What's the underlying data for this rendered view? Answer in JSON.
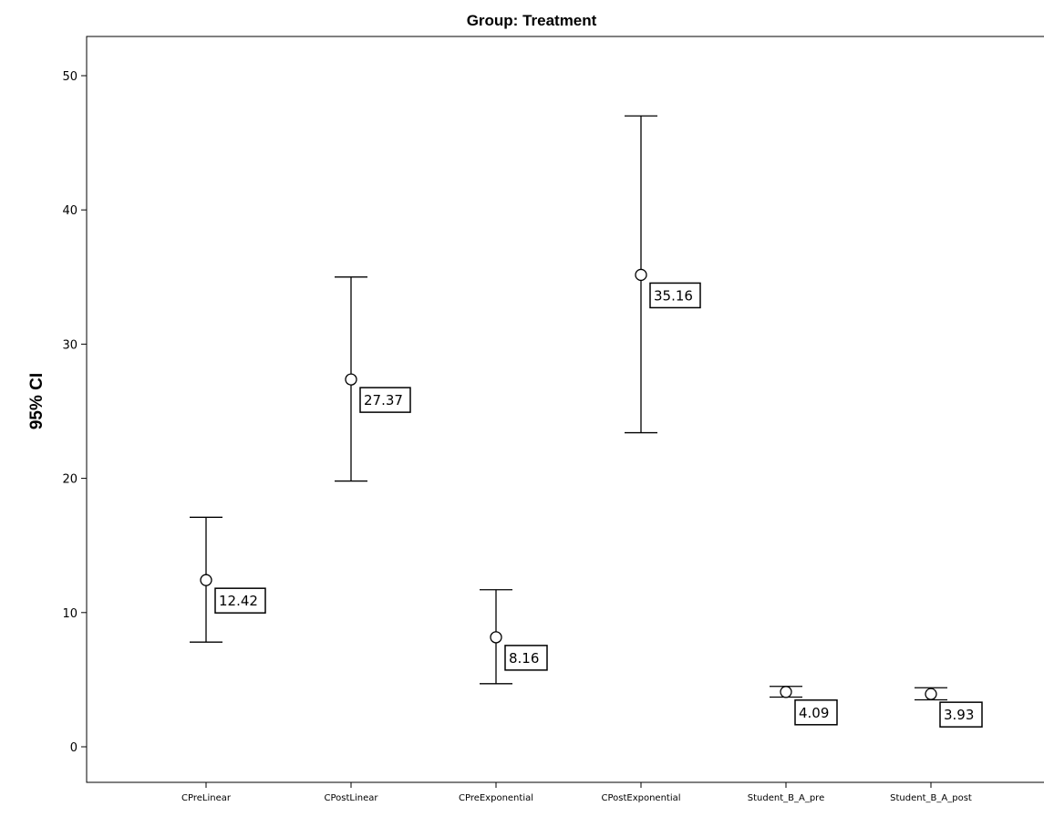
{
  "chart_data": {
    "type": "errorbar",
    "title": "Group: Treatment",
    "ylabel": "95% CI",
    "xlabel": "",
    "ylim": [
      -3,
      53
    ],
    "yticks": [
      0,
      10,
      20,
      30,
      40,
      50
    ],
    "grid": false,
    "categories": [
      "CPreLinear",
      "CPostLinear",
      "CPreExponential",
      "CPostExponential",
      "Student_B_A_pre",
      "Student_B_A_post"
    ],
    "means": [
      12.42,
      27.37,
      8.16,
      35.16,
      4.09,
      3.93
    ],
    "mean_labels": [
      "12.42",
      "27.37",
      "8.16",
      "35.16",
      "4.09",
      "3.93"
    ],
    "lower": [
      7.8,
      19.8,
      4.7,
      23.4,
      3.7,
      3.5
    ],
    "upper": [
      17.1,
      35.0,
      11.7,
      47.0,
      4.5,
      4.4
    ]
  }
}
